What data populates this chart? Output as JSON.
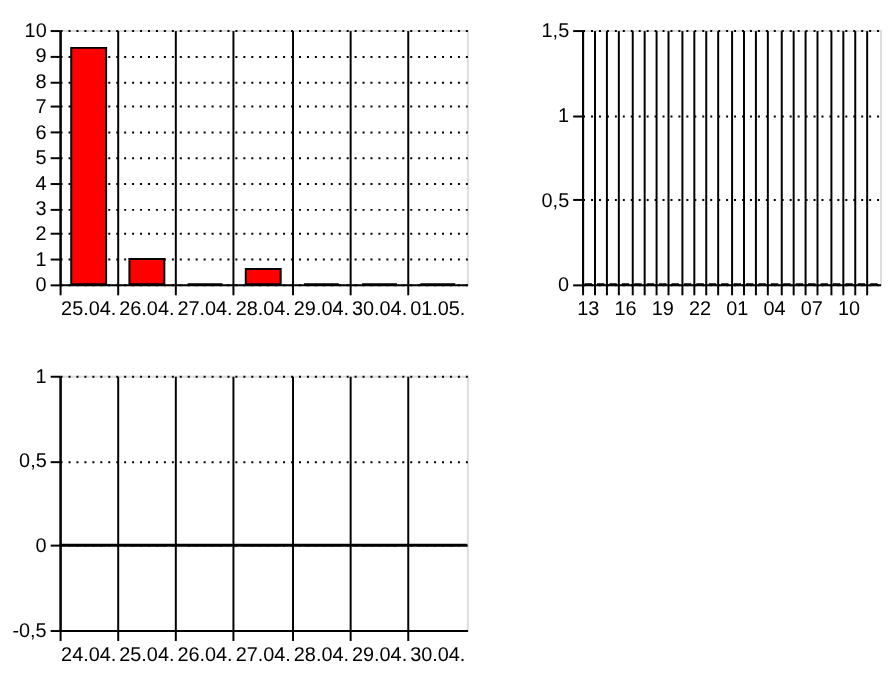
{
  "chart_data": [
    {
      "type": "bar",
      "categories": [
        "25.04.",
        "26.04.",
        "27.04.",
        "28.04.",
        "29.04.",
        "30.04.",
        "01.05."
      ],
      "values": [
        9.3,
        1,
        0,
        0.6,
        0,
        0,
        0
      ],
      "color": "#ff0000",
      "ylim": [
        0,
        10
      ],
      "yticks": [
        0,
        1,
        2,
        3,
        4,
        5,
        6,
        7,
        8,
        9,
        10
      ],
      "grid": true
    },
    {
      "type": "bar",
      "categories": [
        "13",
        null,
        null,
        "16",
        null,
        null,
        "19",
        null,
        null,
        "22",
        null,
        null,
        "01",
        null,
        null,
        "04",
        null,
        null,
        "07",
        null,
        null,
        "10",
        null,
        null
      ],
      "values": [
        0,
        0,
        0,
        0,
        0,
        0,
        0,
        0,
        0,
        0,
        0,
        0,
        0,
        0,
        0,
        0,
        0,
        0,
        0,
        0,
        0,
        0,
        0,
        0
      ],
      "ylim": [
        0,
        1.5
      ],
      "yticks": [
        0,
        {
          "value": 0.5,
          "label": "0,5"
        },
        1,
        {
          "value": 1.5,
          "label": "1,5"
        }
      ],
      "grid": true
    },
    {
      "type": "bar",
      "categories": [
        "24.04.",
        "25.04.",
        "26.04.",
        "27.04.",
        "28.04.",
        "29.04.",
        "30.04."
      ],
      "values": [
        0,
        0,
        0,
        0,
        0,
        0,
        0
      ],
      "ylim": [
        -0.5,
        1
      ],
      "yticks": [
        {
          "value": -0.5,
          "label": "-0,5"
        },
        0,
        {
          "value": 0.5,
          "label": "0,5"
        },
        1
      ],
      "grid": true,
      "ref_lines": [
        {
          "axis": "y",
          "value": 0
        }
      ]
    }
  ]
}
